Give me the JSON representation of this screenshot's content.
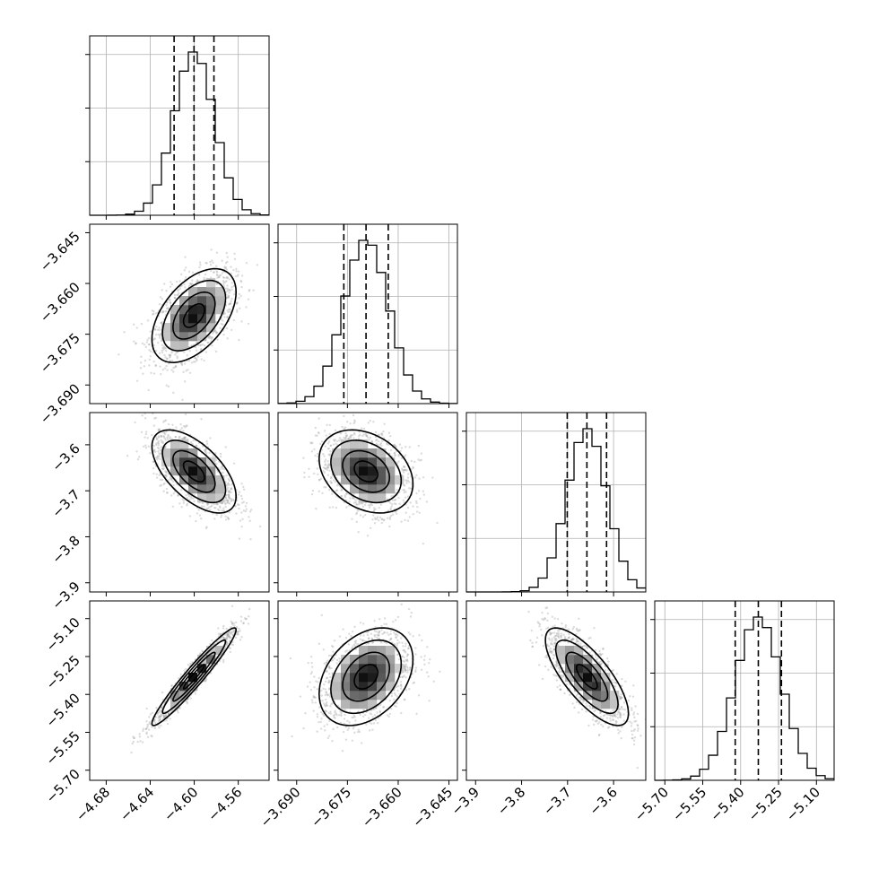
{
  "chart_data": {
    "type": "corner",
    "parameters": [
      {
        "mean": -4.6002,
        "std": 0.0182,
        "range": [
          -4.695,
          -4.532
        ],
        "ticks": [
          -4.68,
          -4.64,
          -4.6,
          -4.56
        ],
        "tick_labels": [
          "−4.68",
          "−4.64",
          "−4.60",
          "−4.56"
        ]
      },
      {
        "mean": -3.6695,
        "std": 0.0066,
        "range": [
          -3.6955,
          -3.6425
        ],
        "ticks": [
          -3.69,
          -3.675,
          -3.66,
          -3.645
        ],
        "tick_labels": [
          "−3.690",
          "−3.675",
          "−3.660",
          "−3.645"
        ]
      },
      {
        "mean": -3.658,
        "std": 0.043,
        "range": [
          -3.92,
          -3.53
        ],
        "ticks": [
          -3.9,
          -3.8,
          -3.7,
          -3.6
        ],
        "tick_labels": [
          "−3.9",
          "−3.8",
          "−3.7",
          "−3.6"
        ]
      },
      {
        "mean": -5.33,
        "std": 0.092,
        "range": [
          -5.74,
          -5.03
        ],
        "ticks": [
          -5.7,
          -5.55,
          -5.4,
          -5.25,
          -5.1
        ],
        "tick_labels": [
          "−5.70",
          "−5.55",
          "−5.40",
          "−5.25",
          "−5.10"
        ]
      }
    ],
    "correlations": [
      {
        "i": 1,
        "j": 0,
        "rho": 0.5
      },
      {
        "i": 2,
        "j": 0,
        "rho": -0.6
      },
      {
        "i": 2,
        "j": 1,
        "rho": -0.3
      },
      {
        "i": 3,
        "j": 0,
        "rho": 0.96
      },
      {
        "i": 3,
        "j": 1,
        "rho": 0.35
      },
      {
        "i": 3,
        "j": 2,
        "rho": -0.75
      }
    ],
    "quantiles": [
      0.16,
      0.5,
      0.84
    ],
    "contour_levels_sigma": [
      0.5,
      1.0,
      1.5,
      2.0
    ],
    "histogram_bins": 20,
    "marginal_grid": true,
    "colors": {
      "ink": "#000000",
      "points": "#9a9a9a",
      "density_dark": "#000000",
      "density_light": "#ffffff"
    }
  }
}
